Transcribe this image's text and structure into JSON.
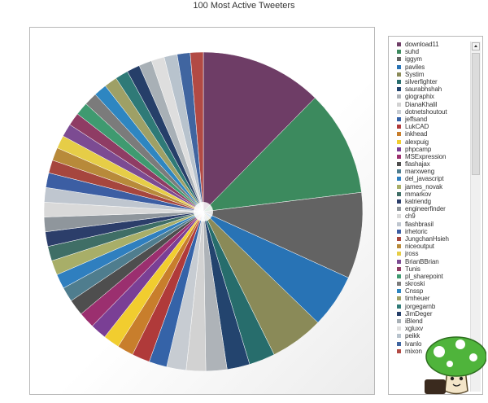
{
  "chart_data": {
    "type": "pie",
    "title": "100 Most Active Tweeters",
    "legend_placement": "right",
    "legend_scrollable": true,
    "series": [
      {
        "name": "download11",
        "value": 7.5,
        "color": "#6e3d66"
      },
      {
        "name": "suhd",
        "value": 6.5,
        "color": "#3c8a5e"
      },
      {
        "name": "iggym",
        "value": 5.3,
        "color": "#636363"
      },
      {
        "name": "paviles",
        "value": 3.3,
        "color": "#2873b5"
      },
      {
        "name": "Systim",
        "value": 3.3,
        "color": "#8a8a58"
      },
      {
        "name": "silverfighter",
        "value": 1.6,
        "color": "#276d6c"
      },
      {
        "name": "saurabhshah",
        "value": 1.4,
        "color": "#23446e"
      },
      {
        "name": "giographix",
        "value": 1.3,
        "color": "#aeb3b8"
      },
      {
        "name": "DianaKhalil",
        "value": 1.2,
        "color": "#d2d2d2"
      },
      {
        "name": "dotnetshoutout",
        "value": 1.2,
        "color": "#c7ccd2"
      },
      {
        "name": "jeffsand",
        "value": 1.1,
        "color": "#3563a8"
      },
      {
        "name": "LukCAD",
        "value": 1.1,
        "color": "#b03a3a"
      },
      {
        "name": "inkhead",
        "value": 1.0,
        "color": "#c87e2c"
      },
      {
        "name": "alexpuig",
        "value": 1.0,
        "color": "#f1cd2f"
      },
      {
        "name": "phpcamp",
        "value": 1.0,
        "color": "#7a3f95"
      },
      {
        "name": "MSExpression",
        "value": 1.0,
        "color": "#9b2f6f"
      },
      {
        "name": "flashajax",
        "value": 1.0,
        "color": "#4e4e4e"
      },
      {
        "name": "marxweng",
        "value": 0.9,
        "color": "#4f7d8e"
      },
      {
        "name": "del_javascript",
        "value": 0.9,
        "color": "#2f7fbf"
      },
      {
        "name": "james_novak",
        "value": 0.9,
        "color": "#a8ae68"
      },
      {
        "name": "mmarkov",
        "value": 0.9,
        "color": "#3f6e66"
      },
      {
        "name": "katriendg",
        "value": 0.9,
        "color": "#2c3e6a"
      },
      {
        "name": "engineerfinder",
        "value": 0.9,
        "color": "#8f969c"
      },
      {
        "name": "ch9",
        "value": 0.9,
        "color": "#d9d9d9"
      },
      {
        "name": "flashbrasil",
        "value": 0.9,
        "color": "#bfc6cf"
      },
      {
        "name": "irhetoric",
        "value": 0.9,
        "color": "#3c5ea3"
      },
      {
        "name": "JungchanHsieh",
        "value": 0.8,
        "color": "#a6463e"
      },
      {
        "name": "niceoutput",
        "value": 0.8,
        "color": "#b88a3a"
      },
      {
        "name": "jross",
        "value": 0.8,
        "color": "#e6cd47"
      },
      {
        "name": "BrianBBrian",
        "value": 0.8,
        "color": "#7c4b92"
      },
      {
        "name": "Tunis",
        "value": 0.8,
        "color": "#8f3c64"
      },
      {
        "name": "pl_sharepoint",
        "value": 0.8,
        "color": "#3f9a70"
      },
      {
        "name": "skroski",
        "value": 0.8,
        "color": "#7b7b7b"
      },
      {
        "name": "Cnssp",
        "value": 0.8,
        "color": "#2e86c1"
      },
      {
        "name": "timheuer",
        "value": 0.8,
        "color": "#9ea066"
      },
      {
        "name": "jorgegarnb",
        "value": 0.8,
        "color": "#2f7a77"
      },
      {
        "name": "JimDeger",
        "value": 0.8,
        "color": "#263f69"
      },
      {
        "name": "iBlend",
        "value": 0.8,
        "color": "#a8b0b6"
      },
      {
        "name": "xgluxv",
        "value": 0.8,
        "color": "#dedede"
      },
      {
        "name": "peikk",
        "value": 0.8,
        "color": "#b8c3cd"
      },
      {
        "name": "lvanlo",
        "value": 0.8,
        "color": "#4065a0"
      },
      {
        "name": "mixon",
        "value": 0.8,
        "color": "#b24a44"
      }
    ]
  },
  "mascot": {
    "name": "mushroom-mascot"
  }
}
